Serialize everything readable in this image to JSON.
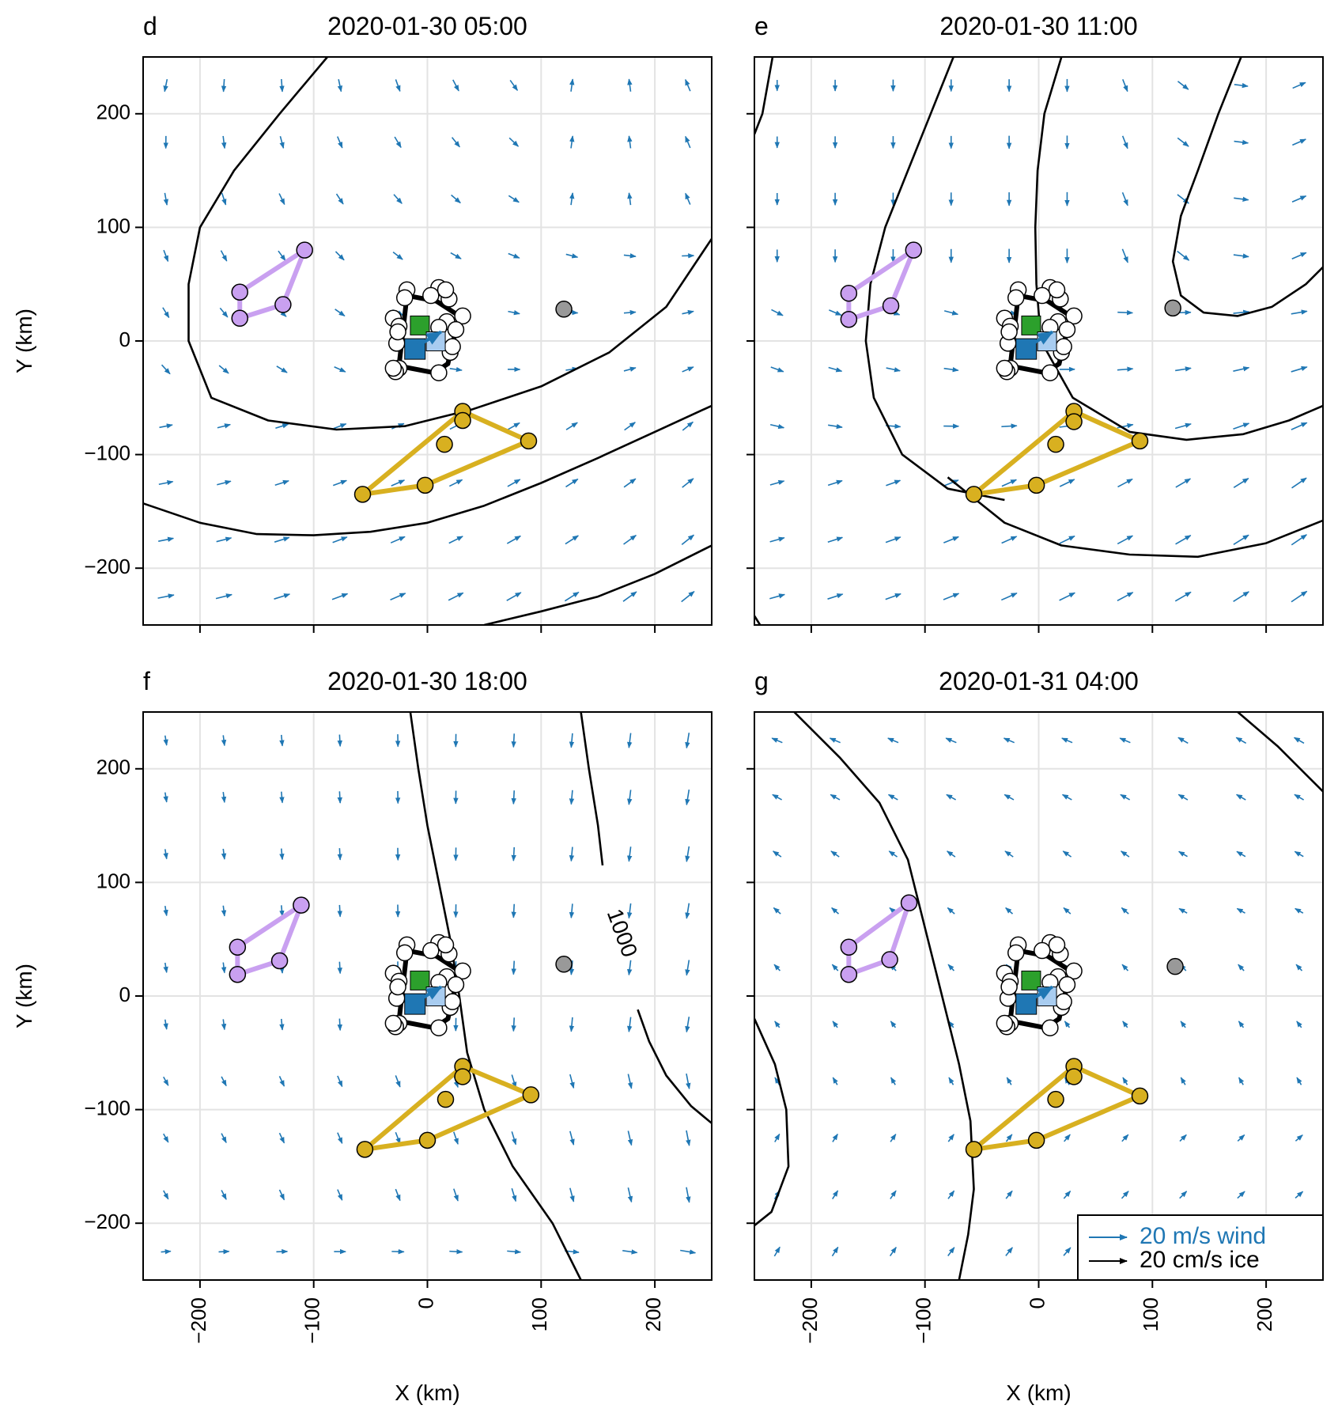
{
  "chart_data": {
    "type": "scatter",
    "xlabel": "X (km)",
    "ylabel": "Y (km)",
    "xlim": [
      -250,
      250
    ],
    "ylim": [
      -250,
      250
    ],
    "xticks": [
      -200,
      -100,
      0,
      100,
      200
    ],
    "yticks": [
      -200,
      -100,
      0,
      100,
      200
    ],
    "grid": true,
    "colors": {
      "wind": "#1f77b4",
      "ice": "#000000",
      "lavender": "#c9a0f0",
      "gold": "#d8b020",
      "gray": "#999999",
      "green": "#2ca02c",
      "blue": "#1f77b4",
      "lightblue": "#a8ccf0"
    },
    "legend": {
      "position": "bottom-right",
      "entries": [
        {
          "label": "20 m/s wind",
          "color": "#1f77b4"
        },
        {
          "label": "20 cm/s ice",
          "color": "#000000"
        }
      ]
    },
    "panels": [
      {
        "letter": "d",
        "title": "2020-01-30 05:00",
        "show_ylabel": true,
        "show_xlabel": false,
        "show_legend": false,
        "wind_field": "d",
        "lavender": [
          [
            -165,
            43
          ],
          [
            -108,
            80
          ],
          [
            -127,
            32
          ],
          [
            -165,
            20
          ]
        ],
        "gold": [
          [
            -57,
            -135
          ],
          [
            31,
            -62
          ],
          [
            89,
            -88
          ],
          [
            -2,
            -127
          ]
        ],
        "gold_extra": [
          [
            31,
            -70
          ],
          [
            15,
            -91
          ]
        ],
        "gray": [
          120,
          28
        ],
        "contours": [
          [
            [
              -88,
              250
            ],
            [
              -130,
              200
            ],
            [
              -170,
              150
            ],
            [
              -200,
              100
            ],
            [
              -210,
              50
            ],
            [
              -210,
              0
            ],
            [
              -190,
              -50
            ],
            [
              -140,
              -70
            ],
            [
              -80,
              -78
            ],
            [
              -20,
              -75
            ],
            [
              40,
              -60
            ],
            [
              100,
              -40
            ],
            [
              160,
              -10
            ],
            [
              210,
              30
            ],
            [
              250,
              90
            ]
          ],
          [
            [
              -250,
              -143
            ],
            [
              -200,
              -160
            ],
            [
              -150,
              -170
            ],
            [
              -100,
              -171
            ],
            [
              -50,
              -168
            ],
            [
              0,
              -160
            ],
            [
              50,
              -145
            ],
            [
              100,
              -125
            ],
            [
              150,
              -103
            ],
            [
              200,
              -80
            ],
            [
              250,
              -57
            ]
          ],
          [
            [
              50,
              -250
            ],
            [
              100,
              -238
            ],
            [
              150,
              -225
            ],
            [
              200,
              -205
            ],
            [
              250,
              -180
            ]
          ]
        ],
        "contour_label": null
      },
      {
        "letter": "e",
        "title": "2020-01-30 11:00",
        "show_ylabel": false,
        "show_xlabel": false,
        "show_legend": false,
        "wind_field": "e",
        "lavender": [
          [
            -167,
            42
          ],
          [
            -110,
            80
          ],
          [
            -130,
            31
          ],
          [
            -167,
            19
          ]
        ],
        "gold": [
          [
            -57,
            -135
          ],
          [
            31,
            -62
          ],
          [
            89,
            -88
          ],
          [
            -2,
            -127
          ]
        ],
        "gold_extra": [
          [
            31,
            -71
          ],
          [
            15,
            -91
          ]
        ],
        "gray": [
          118,
          29
        ],
        "contours": [
          [
            [
              -234,
              250
            ],
            [
              -243,
              200
            ],
            [
              -250,
              182
            ]
          ],
          [
            [
              -75,
              250
            ],
            [
              -95,
              200
            ],
            [
              -115,
              150
            ],
            [
              -135,
              100
            ],
            [
              -148,
              50
            ],
            [
              -152,
              0
            ],
            [
              -145,
              -50
            ],
            [
              -120,
              -100
            ],
            [
              -80,
              -130
            ],
            [
              -30,
              -140
            ]
          ],
          [
            [
              20,
              250
            ],
            [
              5,
              200
            ],
            [
              -1,
              150
            ],
            [
              -3,
              100
            ],
            [
              -2,
              50
            ],
            [
              2,
              0
            ],
            [
              30,
              -50
            ],
            [
              80,
              -80
            ],
            [
              130,
              -87
            ],
            [
              180,
              -82
            ],
            [
              220,
              -70
            ],
            [
              250,
              -57
            ]
          ],
          [
            [
              178,
              250
            ],
            [
              158,
              200
            ],
            [
              140,
              150
            ],
            [
              125,
              110
            ],
            [
              118,
              70
            ],
            [
              125,
              40
            ],
            [
              145,
              25
            ],
            [
              175,
              22
            ],
            [
              205,
              30
            ],
            [
              235,
              50
            ],
            [
              250,
              65
            ]
          ],
          [
            [
              -80,
              -120
            ],
            [
              -30,
              -160
            ],
            [
              20,
              -180
            ],
            [
              80,
              -188
            ],
            [
              140,
              -190
            ],
            [
              200,
              -178
            ],
            [
              250,
              -158
            ]
          ],
          [
            [
              -250,
              -242
            ],
            [
              -245,
              -250
            ]
          ]
        ],
        "contour_label": null
      },
      {
        "letter": "f",
        "title": "2020-01-30 18:00",
        "show_ylabel": true,
        "show_xlabel": true,
        "show_legend": false,
        "wind_field": "f",
        "lavender": [
          [
            -167,
            43
          ],
          [
            -111,
            80
          ],
          [
            -130,
            31
          ],
          [
            -167,
            19
          ]
        ],
        "gold": [
          [
            -55,
            -135
          ],
          [
            31,
            -62
          ],
          [
            91,
            -87
          ],
          [
            0,
            -127
          ]
        ],
        "gold_extra": [
          [
            31,
            -71
          ],
          [
            16,
            -91
          ]
        ],
        "gray": [
          120,
          28
        ],
        "contours": [
          [
            [
              -15,
              250
            ],
            [
              -8,
              200
            ],
            [
              0,
              150
            ],
            [
              10,
              100
            ],
            [
              20,
              50
            ],
            [
              28,
              0
            ],
            [
              35,
              -50
            ],
            [
              50,
              -100
            ],
            [
              75,
              -150
            ],
            [
              110,
              -200
            ],
            [
              135,
              -250
            ]
          ],
          [
            [
              135,
              250
            ],
            [
              142,
              200
            ],
            [
              150,
              150
            ],
            [
              154,
              115
            ]
          ],
          [
            [
              185,
              -12
            ],
            [
              195,
              -40
            ],
            [
              210,
              -70
            ],
            [
              232,
              -97
            ],
            [
              250,
              -112
            ]
          ]
        ],
        "contour_label": {
          "text": "1000",
          "x": 170,
          "y": 55,
          "angle": 70
        }
      },
      {
        "letter": "g",
        "title": "2020-01-31 04:00",
        "show_ylabel": false,
        "show_xlabel": true,
        "show_legend": true,
        "wind_field": "g",
        "lavender": [
          [
            -167,
            43
          ],
          [
            -114,
            82
          ],
          [
            -131,
            32
          ],
          [
            -167,
            19
          ]
        ],
        "gold": [
          [
            -57,
            -135
          ],
          [
            31,
            -62
          ],
          [
            89,
            -88
          ],
          [
            -2,
            -127
          ]
        ],
        "gold_extra": [
          [
            31,
            -71
          ],
          [
            15,
            -91
          ]
        ],
        "gray": [
          120,
          26
        ],
        "contours": [
          [
            [
              -215,
              250
            ],
            [
              -175,
              210
            ],
            [
              -140,
              170
            ],
            [
              -115,
              120
            ],
            [
              -100,
              60
            ],
            [
              -85,
              0
            ],
            [
              -70,
              -60
            ],
            [
              -60,
              -110
            ],
            [
              -57,
              -170
            ],
            [
              -62,
              -210
            ],
            [
              -70,
              -250
            ]
          ],
          [
            [
              -250,
              -20
            ],
            [
              -232,
              -60
            ],
            [
              -222,
              -100
            ],
            [
              -220,
              -150
            ],
            [
              -235,
              -190
            ],
            [
              -250,
              -202
            ]
          ],
          [
            [
              175,
              250
            ],
            [
              210,
              220
            ],
            [
              250,
              180
            ]
          ]
        ],
        "contour_label": null
      }
    ]
  }
}
